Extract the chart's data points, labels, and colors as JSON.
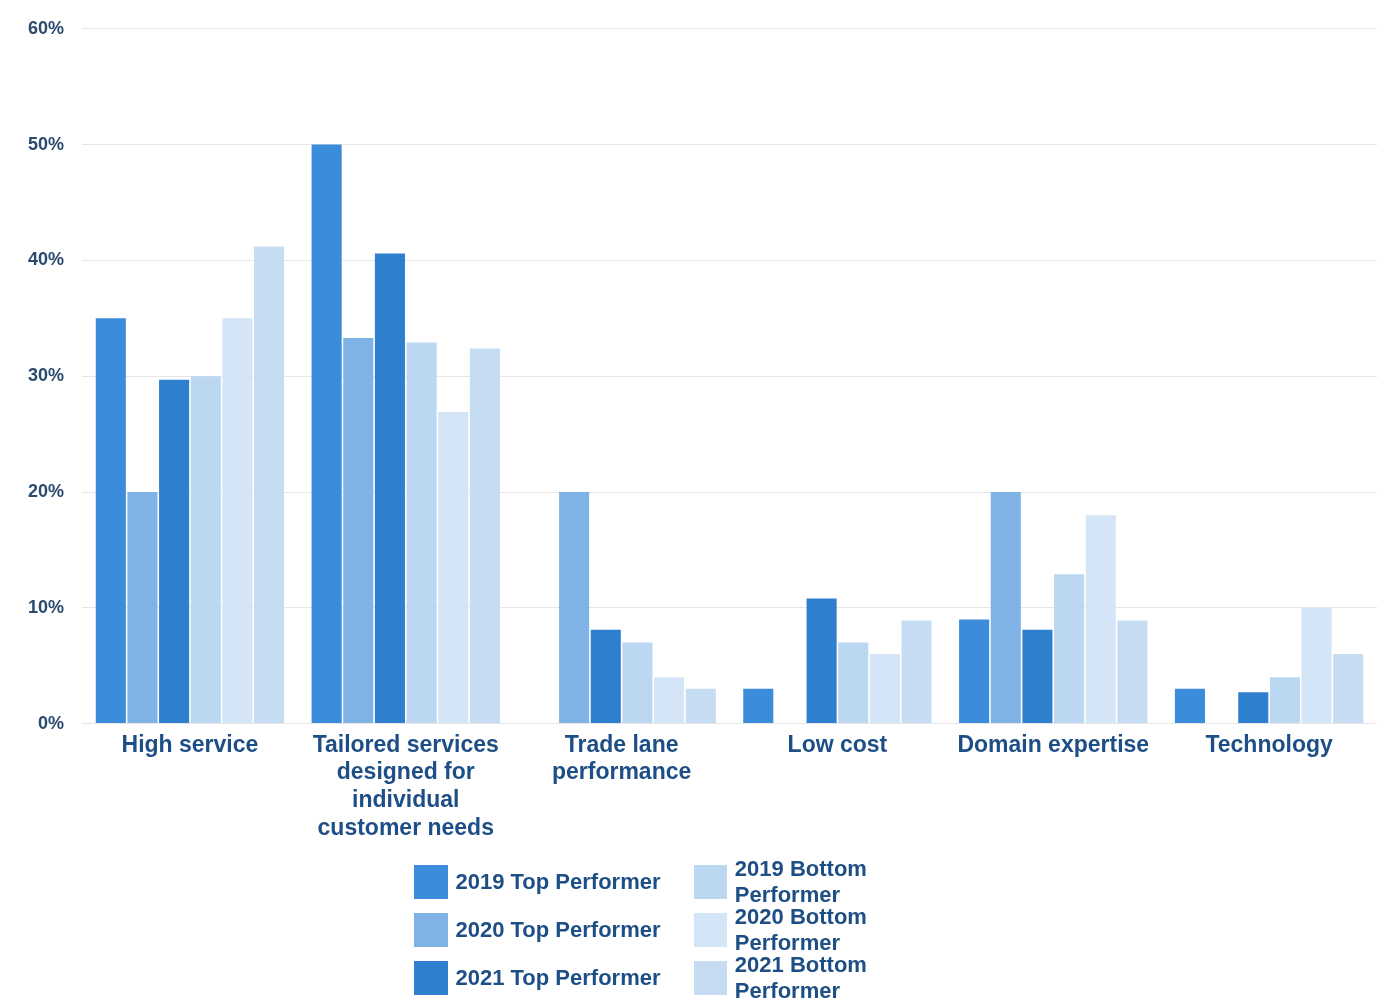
{
  "chart_data": {
    "type": "bar",
    "categories": [
      "High service",
      "Tailored services designed for individual customer needs",
      "Trade lane performance",
      "Low cost",
      "Domain expertise",
      "Technology"
    ],
    "series": [
      {
        "name": "2019 Top Performer",
        "color": "#3b8ddb",
        "values": [
          35,
          50,
          0,
          3,
          9,
          3
        ]
      },
      {
        "name": "2020 Top Performer",
        "color": "#7fb3e6",
        "values": [
          20,
          33.3,
          20,
          0,
          20,
          0
        ]
      },
      {
        "name": "2021 Top Performer",
        "color": "#2f7fcf",
        "values": [
          29.7,
          40.6,
          8.1,
          10.8,
          8.1,
          2.7
        ]
      },
      {
        "name": "2019 Bottom Performer",
        "color": "#bcd7f1",
        "values": [
          30,
          32.9,
          7,
          7,
          12.9,
          4
        ]
      },
      {
        "name": "2020 Bottom Performer",
        "color": "#d3e5f6",
        "values": [
          35,
          26.9,
          4,
          6,
          18,
          10
        ]
      },
      {
        "name": "2021 Bottom Performer",
        "color": "#c6dcf2",
        "values": [
          41.2,
          32.4,
          3,
          8.9,
          8.9,
          6
        ]
      }
    ],
    "ylim": [
      0,
      60
    ],
    "yticks": [
      {
        "value": 0,
        "label": "0%"
      },
      {
        "value": 10,
        "label": "10%"
      },
      {
        "value": 20,
        "label": "20%"
      },
      {
        "value": 30,
        "label": "30%"
      },
      {
        "value": 40,
        "label": "40%"
      },
      {
        "value": 50,
        "label": "50%"
      },
      {
        "value": 60,
        "label": "60%"
      }
    ],
    "grid": "y",
    "legend": "bottom"
  }
}
